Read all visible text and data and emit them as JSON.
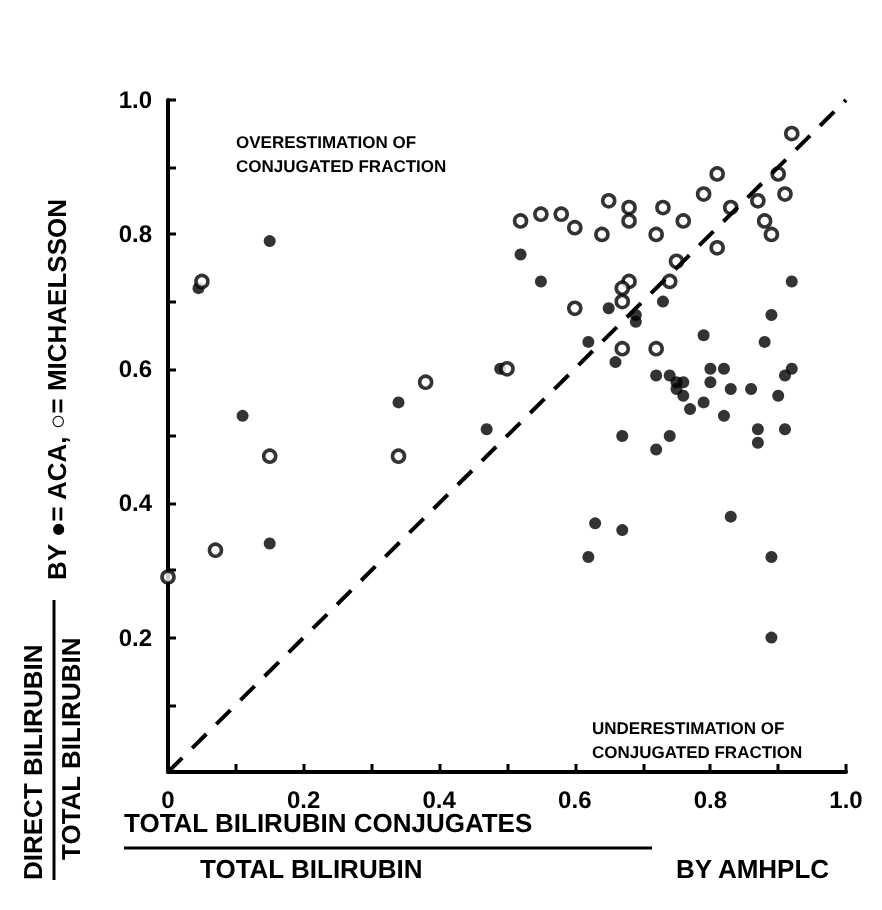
{
  "chart_data": {
    "type": "scatter",
    "xlabel": "TOTAL BILIRUBIN CONJUGATES\nTOTAL BILIRUBIN\nBY AMHPLC",
    "ylabel": "DIRECT BILIRUBIN\nTOTAL BILIRUBIN\nBY ●= ACA, ○= MICHAELSSON",
    "annotations": [
      "OVERESTIMATION OF\nCONJUGATED FRACTION",
      "UNDERESTIMATION OF\nCONJUGATED FRACTION"
    ],
    "xlim": [
      0,
      1
    ],
    "ylim": [
      0,
      1
    ],
    "xticks": [
      0,
      {
        "value": 0.1,
        "label": null
      },
      0.2,
      {
        "value": 0.3,
        "label": null
      },
      0.4,
      {
        "value": 0.5,
        "label": null
      },
      0.6,
      {
        "value": 0.7,
        "label": null
      },
      0.8,
      {
        "value": 0.9,
        "label": null
      },
      {
        "value": 1,
        "label": "1.0"
      }
    ],
    "yticks": [
      {
        "value": 0,
        "label": null
      },
      {
        "value": 0.1,
        "label": null
      },
      0.2,
      {
        "value": 0.3,
        "label": null
      },
      0.4,
      {
        "value": 0.5,
        "label": null
      },
      0.6,
      {
        "value": 0.7,
        "label": null
      },
      0.8,
      {
        "value": 0.9,
        "label": null
      },
      {
        "value": 1,
        "label": "1.0"
      }
    ],
    "grid": false,
    "marker": "circle",
    "series": [
      {
        "color": "#000000",
        "x": [
          0.15,
          0.045,
          0.11,
          0.15,
          0.34,
          0.47,
          0.49,
          0.52,
          0.55,
          0.63,
          0.62,
          0.62,
          0.65,
          0.69,
          0.69,
          0.73,
          0.92,
          0.89,
          0.79,
          0.88,
          0.66,
          0.72,
          0.74,
          0.75,
          0.76,
          0.75,
          0.76,
          0.77,
          0.79,
          0.8,
          0.82,
          0.8,
          0.83,
          0.86,
          0.82,
          0.91,
          0.92,
          0.9,
          0.67,
          0.72,
          0.74,
          0.87,
          0.87,
          0.91,
          0.67,
          0.83,
          0.89,
          0.89
        ],
        "values": [
          0.79,
          0.72,
          0.53,
          0.34,
          0.55,
          0.51,
          0.6,
          0.77,
          0.73,
          0.37,
          0.32,
          0.64,
          0.69,
          0.67,
          0.68,
          0.7,
          0.73,
          0.68,
          0.65,
          0.64,
          0.61,
          0.59,
          0.59,
          0.58,
          0.58,
          0.57,
          0.56,
          0.54,
          0.55,
          0.6,
          0.6,
          0.58,
          0.57,
          0.57,
          0.53,
          0.59,
          0.6,
          0.56,
          0.5,
          0.48,
          0.5,
          0.51,
          0.49,
          0.51,
          0.36,
          0.38,
          0.32,
          0.2
        ]
      },
      {
        "color": "#000000",
        "x": [
          0.05,
          0.07,
          0.15,
          0.34,
          0.38,
          0.5,
          0.52,
          0.55,
          0.58,
          0.6,
          0.6,
          0.0,
          0.64,
          0.65,
          0.68,
          0.68,
          0.73,
          0.72,
          0.76,
          0.81,
          0.79,
          0.83,
          0.81,
          0.9,
          0.87,
          0.91,
          0.88,
          0.89,
          0.92,
          0.75,
          0.74,
          0.68,
          0.67,
          0.67,
          0.67,
          0.72
        ],
        "values": [
          0.73,
          0.33,
          0.47,
          0.47,
          0.58,
          0.6,
          0.82,
          0.83,
          0.83,
          0.81,
          0.69,
          0.29,
          0.8,
          0.85,
          0.84,
          0.82,
          0.84,
          0.8,
          0.82,
          0.89,
          0.86,
          0.84,
          0.78,
          0.89,
          0.85,
          0.86,
          0.82,
          0.8,
          0.95,
          0.76,
          0.73,
          0.73,
          0.72,
          0.7,
          0.63,
          0.63
        ]
      },
      {
        "type": "line",
        "color": "#000000",
        "line_style": "dashed",
        "marker": "none",
        "x": [
          0,
          1
        ],
        "values": [
          0,
          1
        ]
      }
    ]
  }
}
